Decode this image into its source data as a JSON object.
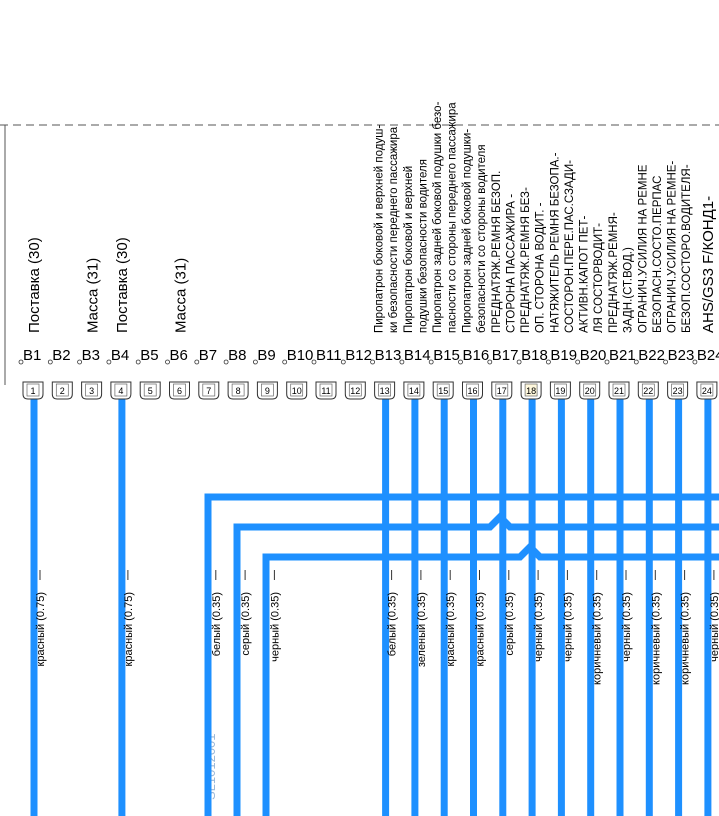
{
  "pins": [
    {
      "id": "B1",
      "number": "1",
      "name": "Поставка (30)",
      "wire": "красный (0.75)"
    },
    {
      "id": "B2",
      "number": "2"
    },
    {
      "id": "B3",
      "number": "3",
      "name": "Масса (31)"
    },
    {
      "id": "B4",
      "number": "4",
      "name": "Поставка (30)",
      "wire": "красный (0.75)"
    },
    {
      "id": "B5",
      "number": "5"
    },
    {
      "id": "B6",
      "number": "6",
      "name": "Масса (31)"
    },
    {
      "id": "B7",
      "number": "7",
      "wire": "белый (0.35)"
    },
    {
      "id": "B8",
      "number": "8",
      "wire": "серый (0.35)"
    },
    {
      "id": "B9",
      "number": "9",
      "wire": "черный (0.35)"
    },
    {
      "id": "B10",
      "number": "10"
    },
    {
      "id": "B11",
      "number": "11"
    },
    {
      "id": "B12",
      "number": "12"
    },
    {
      "id": "B13",
      "number": "13",
      "description": [
        "Пиропатрон боковой и верхней подуш-",
        "ки безопасности переднего пассажира"
      ],
      "wire": "белый (0.35)"
    },
    {
      "id": "B14",
      "number": "14",
      "description": [
        "Пиропатрон боковой и верхней",
        "подушки безопасности водителя"
      ],
      "wire": "зеленый (0.35)"
    },
    {
      "id": "B15",
      "number": "15",
      "description": [
        "Пиропатрон задней боковой подушки безо-",
        "пасности со стороны переднего пассажира"
      ],
      "wire": "красный (0.35)"
    },
    {
      "id": "B16",
      "number": "16",
      "description": [
        "Пиропатрон задней боковой подушки-",
        "безопасности со стороны водителя"
      ],
      "wire": "красный (0.35)"
    },
    {
      "id": "B17",
      "number": "17",
      "description": [
        "ПРЕДНАТЯЖ.РЕМНЯ БЕЗОП.",
        "СТОРОНА ПАССАЖИРА -"
      ],
      "wire": "серый (0.35)"
    },
    {
      "id": "B18",
      "number": "18",
      "description": [
        "ПРЕДНАТЯЖ.РЕМНЯ БЕЗ-",
        "ОП. СТОРОНА ВОДИТ. -"
      ],
      "wire": "черный (0.35)"
    },
    {
      "id": "B19",
      "number": "19",
      "description": [
        "НАТЯЖИТЕЛЬ РЕМНЯ БЕЗОПА.-",
        "СОСТОРОН.ПЕРЕ.ПАС.СЗАДИ-"
      ],
      "wire": "черный (0.35)"
    },
    {
      "id": "B20",
      "number": "20",
      "description": [
        "АКТИВН.КАПОТ ПЕТ-",
        "ЛЯ СОСТОРВОДИТ-"
      ],
      "wire": "коричневый (0.35)"
    },
    {
      "id": "B21",
      "number": "21",
      "description": [
        "ПРЕДНАТЯЖ.РЕМНЯ-",
        "ЗАДН.(СТ.ВОД.)"
      ],
      "wire": "черный (0.35)"
    },
    {
      "id": "B22",
      "number": "22",
      "description": [
        "ОГРАНИЧ.УСИЛИЯ НА РЕМНЕ",
        "БЕЗОПАСН.СОСТО.ПЕРПАС"
      ],
      "wire": "коричневый (0.35)"
    },
    {
      "id": "B23",
      "number": "23",
      "description": [
        "ОГРАНИЧ.УСИЛИЯ НА РЕМНЕ-",
        "БЕЗОП.СОСТОРО.ВОДИТЕЛЯ-"
      ],
      "wire": "коричневый (0.35)"
    },
    {
      "id": "B24",
      "number": "24",
      "name": "AHS/GS3 F/КОНД1-",
      "wire": "черный (0.35)"
    }
  ],
  "watermark": "SL1012001"
}
